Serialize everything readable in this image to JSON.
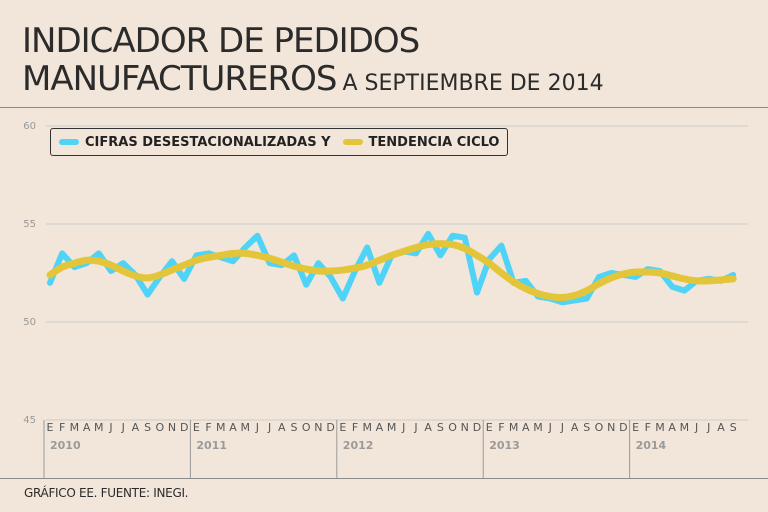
{
  "title": {
    "line1": "INDICADOR DE PEDIDOS",
    "line2": "MANUFACTUREROS",
    "subtitle": "A SEPTIEMBRE DE 2014"
  },
  "source": "GRÁFICO EE. FUENTE: INEGI.",
  "colors": {
    "background": "#f2e6da",
    "series1": "#4fd3f7",
    "series2": "#e3c53a",
    "grid": "#cccccc",
    "axis": "#999999"
  },
  "chart_data": {
    "type": "line",
    "title": "INDICADOR DE PEDIDOS MANUFACTUREROS A SEPTIEMBRE DE 2014",
    "xlabel": "",
    "ylabel": "",
    "ylim": [
      45,
      60
    ],
    "yticks": [
      "45",
      "50",
      "55",
      "60"
    ],
    "grid": true,
    "legend_position": "top-left",
    "month_labels": [
      "E",
      "F",
      "M",
      "A",
      "M",
      "J",
      "J",
      "A",
      "S",
      "O",
      "N",
      "D",
      "E",
      "F",
      "M",
      "A",
      "M",
      "J",
      "J",
      "A",
      "S",
      "O",
      "N",
      "D",
      "E",
      "F",
      "M",
      "A",
      "M",
      "J",
      "J",
      "A",
      "S",
      "O",
      "N",
      "D",
      "E",
      "F",
      "M",
      "A",
      "M",
      "J",
      "J",
      "A",
      "S",
      "O",
      "N",
      "D",
      "E",
      "F",
      "M",
      "A",
      "M",
      "J",
      "J",
      "A",
      "S"
    ],
    "year_labels": [
      "2010",
      "2011",
      "2012",
      "2013",
      "2014"
    ],
    "series": [
      {
        "name": "CIFRAS DESESTACIONALIZADAS Y",
        "color": "#4fd3f7",
        "values": [
          52.0,
          53.5,
          52.8,
          53.0,
          53.5,
          52.6,
          53.0,
          52.4,
          51.4,
          52.3,
          53.1,
          52.2,
          53.4,
          53.5,
          53.3,
          53.1,
          53.8,
          54.4,
          53.0,
          52.9,
          53.4,
          51.9,
          53.0,
          52.3,
          51.2,
          52.6,
          53.8,
          52.0,
          53.4,
          53.6,
          53.5,
          54.5,
          53.4,
          54.4,
          54.3,
          51.5,
          53.2,
          53.9,
          52.0,
          52.1,
          51.3,
          51.2,
          51.0,
          51.1,
          51.2,
          52.3,
          52.5,
          52.4,
          52.3,
          52.7,
          52.6,
          51.8,
          51.6,
          52.1,
          52.2,
          52.1,
          52.4
        ]
      },
      {
        "name": "TENDENCIA CICLO",
        "color": "#e3c53a",
        "values": [
          52.4,
          52.8,
          53.0,
          53.15,
          53.1,
          52.9,
          52.6,
          52.35,
          52.25,
          52.4,
          52.65,
          52.9,
          53.15,
          53.3,
          53.4,
          53.5,
          53.5,
          53.4,
          53.25,
          53.05,
          52.85,
          52.7,
          52.6,
          52.6,
          52.65,
          52.75,
          52.9,
          53.15,
          53.4,
          53.6,
          53.8,
          53.95,
          54.0,
          53.95,
          53.75,
          53.4,
          53.0,
          52.5,
          52.05,
          51.7,
          51.45,
          51.3,
          51.25,
          51.35,
          51.6,
          51.95,
          52.25,
          52.45,
          52.55,
          52.55,
          52.5,
          52.35,
          52.2,
          52.1,
          52.1,
          52.15,
          52.2
        ]
      }
    ]
  }
}
